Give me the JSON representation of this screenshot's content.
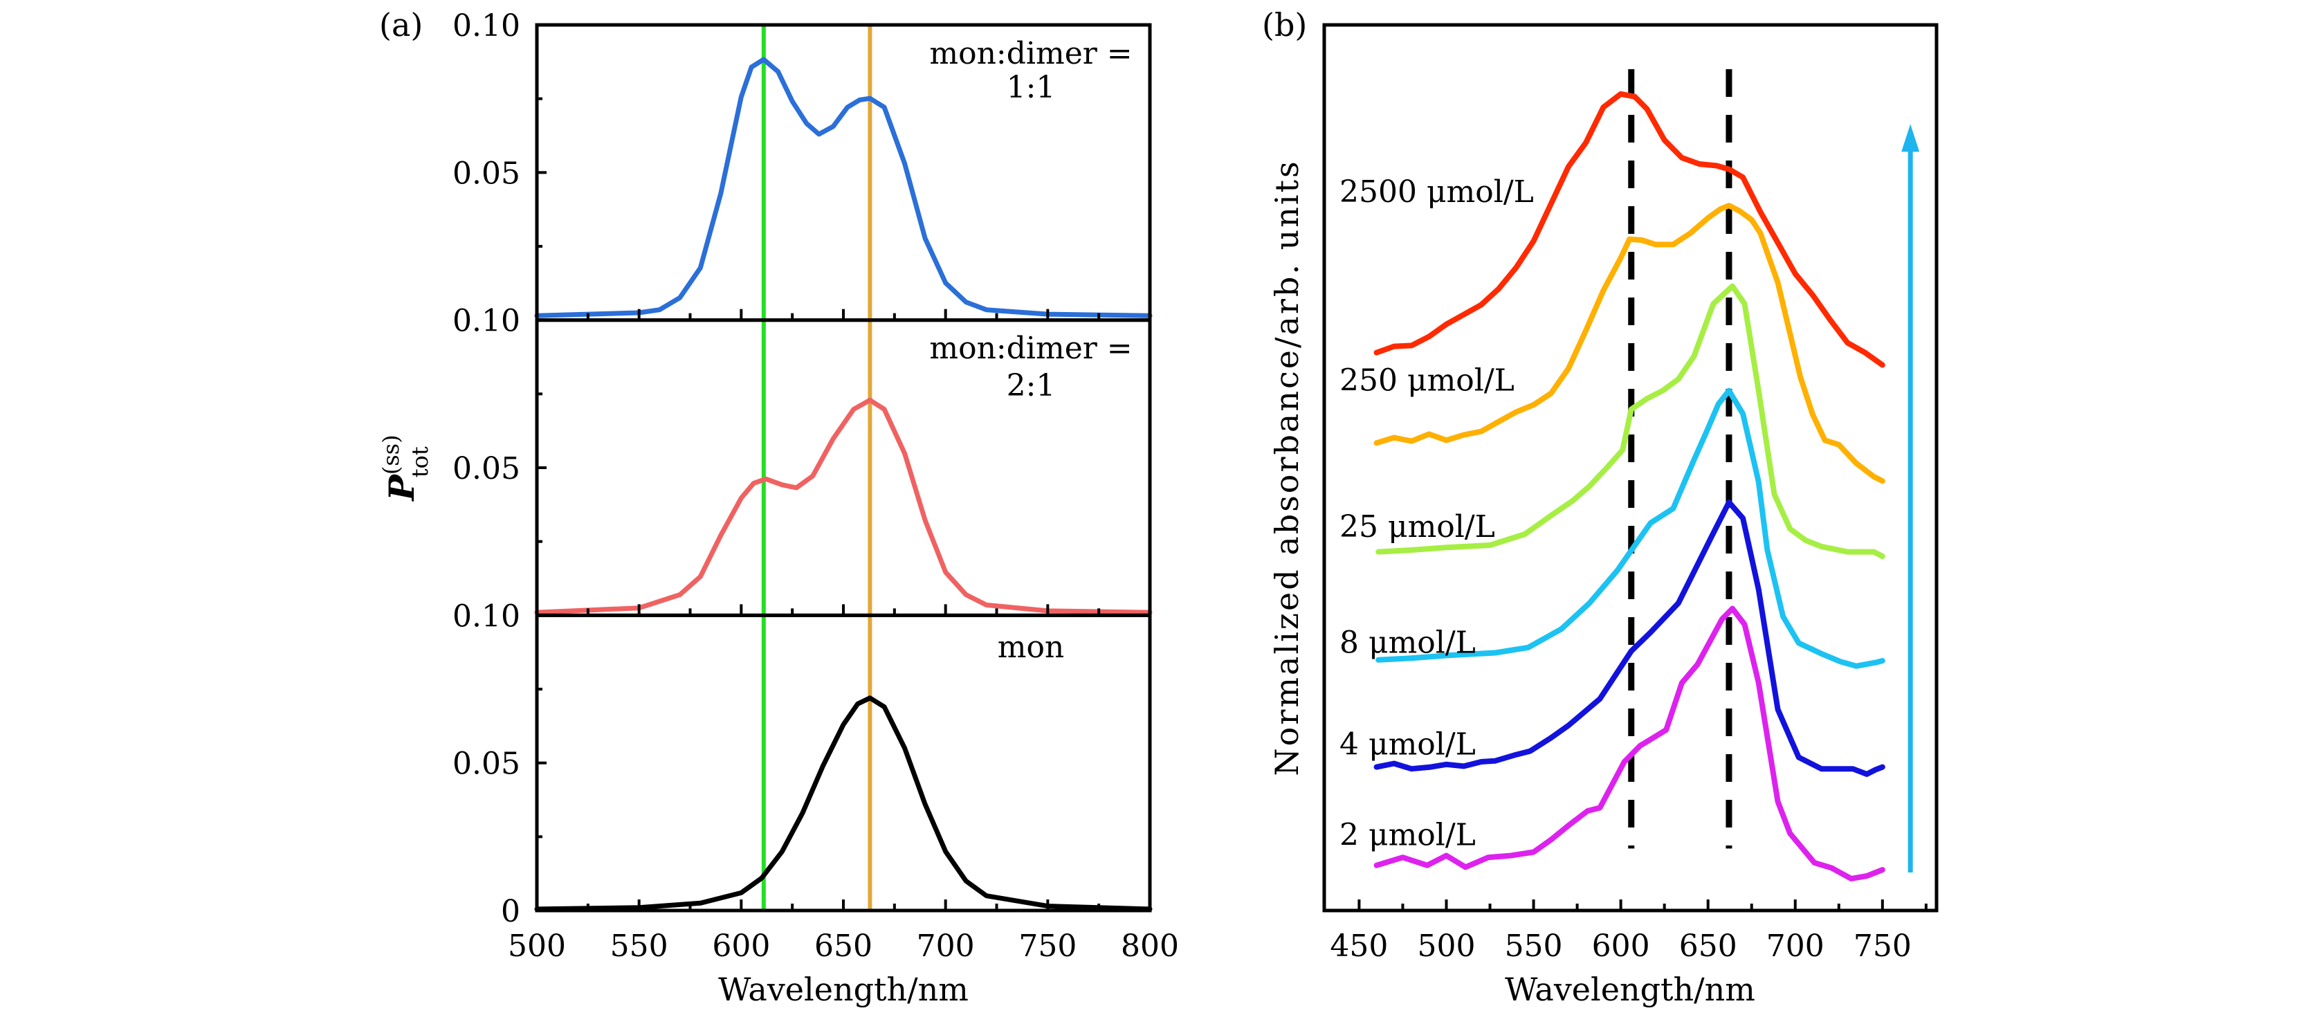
{
  "chart_data": [
    {
      "id": "a",
      "panel_label": "(a)",
      "type": "line",
      "layout": "three vertically stacked subplots sharing x-axis",
      "xlabel": "Wavelength/nm",
      "ylabel": "P_tot^(ss)",
      "ylabel_parts": {
        "main": "P",
        "sup": "(ss)",
        "sub": "tot"
      },
      "xlim": [
        500,
        800
      ],
      "x_ticks": [
        500,
        550,
        600,
        650,
        700,
        750,
        800
      ],
      "x_tick_labels": [
        "500",
        "550",
        "600",
        "650",
        "700",
        "750",
        "800"
      ],
      "x_minor_step": 25,
      "grid": false,
      "reference_lines": [
        {
          "name": "green-line",
          "x": 611,
          "color": "#22e022"
        },
        {
          "name": "orange-line",
          "x": 663,
          "color": "#e0a83a"
        }
      ],
      "subplots": [
        {
          "annotation": [
            "mon:dimer =",
            "1:1"
          ],
          "ylim": [
            0,
            0.1
          ],
          "y_ticks": [
            0.05,
            0.1
          ],
          "y_tick_labels": {
            "top": "0.10",
            "mid": "0.05",
            "bottom": "0.10"
          },
          "series": [
            {
              "name": "mon:dimer = 1:1",
              "color": "#2b6fd8",
              "x": [
                500,
                550,
                560,
                570,
                580,
                590,
                600,
                605,
                611,
                618,
                625,
                632,
                638,
                645,
                652,
                658,
                663,
                670,
                680,
                690,
                700,
                710,
                720,
                750,
                800
              ],
              "y": [
                0.0015,
                0.0025,
                0.0035,
                0.0076,
                0.0177,
                0.0429,
                0.0756,
                0.0857,
                0.0883,
                0.0842,
                0.0741,
                0.0666,
                0.063,
                0.0656,
                0.0721,
                0.0746,
                0.0751,
                0.0721,
                0.053,
                0.0277,
                0.0126,
                0.0061,
                0.0035,
                0.002,
                0.0015
              ]
            }
          ]
        },
        {
          "annotation": [
            "mon:dimer =",
            "2:1"
          ],
          "ylim": [
            0,
            0.1
          ],
          "y_ticks": [
            0.05,
            0.1
          ],
          "y_tick_labels": {
            "mid": "0.05",
            "bottom": "0.10"
          },
          "series": [
            {
              "name": "mon:dimer = 2:1",
              "color": "#f06262",
              "x": [
                500,
                550,
                570,
                580,
                590,
                600,
                606,
                612,
                620,
                627,
                635,
                645,
                655,
                663,
                670,
                680,
                690,
                700,
                710,
                720,
                750,
                800
              ],
              "y": [
                0.001,
                0.0025,
                0.007,
                0.0131,
                0.0271,
                0.0397,
                0.0447,
                0.0462,
                0.0442,
                0.0432,
                0.0472,
                0.0598,
                0.0698,
                0.0729,
                0.0698,
                0.0548,
                0.0322,
                0.0146,
                0.007,
                0.0035,
                0.0015,
                0.001
              ]
            }
          ]
        },
        {
          "annotation": [
            "mon"
          ],
          "ylim": [
            0,
            0.1
          ],
          "y_ticks": [
            0,
            0.05
          ],
          "y_tick_labels": {
            "mid": "0.05",
            "bottom": "0"
          },
          "series": [
            {
              "name": "mon",
              "color": "#000000",
              "x": [
                500,
                550,
                580,
                600,
                610,
                620,
                630,
                640,
                650,
                657,
                663,
                670,
                680,
                690,
                700,
                710,
                720,
                750,
                800
              ],
              "y": [
                0.0005,
                0.001,
                0.0025,
                0.006,
                0.011,
                0.02,
                0.033,
                0.049,
                0.063,
                0.07,
                0.072,
                0.069,
                0.055,
                0.036,
                0.02,
                0.01,
                0.005,
                0.0015,
                0.0005
              ]
            }
          ]
        }
      ]
    },
    {
      "id": "b",
      "panel_label": "(b)",
      "type": "line",
      "xlabel": "Wavelength/nm",
      "ylabel": "Normalized absorbance/arb. units",
      "xlim": [
        430,
        781
      ],
      "ylim": [
        0,
        1
      ],
      "y_ticks": [],
      "x_ticks": [
        450,
        500,
        550,
        600,
        650,
        700,
        750
      ],
      "x_tick_labels": [
        "450",
        "500",
        "550",
        "600",
        "650",
        "700",
        "750"
      ],
      "x_minor_step": 25,
      "grid": false,
      "dashed_lines": [
        {
          "name": "dashed-line-606",
          "x": 606,
          "y_range": [
            0.07,
            0.95
          ]
        },
        {
          "name": "dashed-line-662",
          "x": 662,
          "y_range": [
            0.07,
            0.95
          ]
        }
      ],
      "arrow": {
        "direction": "up",
        "color": "#1eb4ee",
        "x": 766,
        "y_from": 0.043,
        "y_to": 0.888,
        "meaning": "increasing concentration"
      },
      "series": [
        {
          "name": "2500 μmol/L",
          "color": "#ff2a00",
          "label_y": 0.8,
          "x": [
            460,
            470,
            480,
            490,
            500,
            510,
            520,
            530,
            540,
            550,
            560,
            570,
            580,
            590,
            600,
            608,
            615,
            625,
            635,
            645,
            655,
            662,
            670,
            680,
            690,
            700,
            710,
            720,
            730,
            740,
            750
          ],
          "y": [
            0.63,
            0.637,
            0.638,
            0.648,
            0.662,
            0.673,
            0.684,
            0.702,
            0.726,
            0.756,
            0.798,
            0.84,
            0.867,
            0.907,
            0.922,
            0.919,
            0.905,
            0.87,
            0.85,
            0.843,
            0.841,
            0.837,
            0.828,
            0.789,
            0.754,
            0.719,
            0.695,
            0.667,
            0.641,
            0.63,
            0.616
          ]
        },
        {
          "name": "250 μmol/L",
          "color": "#ffb000",
          "label_y": 0.587,
          "x": [
            460,
            470,
            480,
            490,
            500,
            510,
            520,
            530,
            540,
            550,
            560,
            570,
            580,
            590,
            600,
            605,
            612,
            620,
            630,
            640,
            650,
            657,
            662,
            668,
            675,
            680,
            690,
            703,
            710,
            717,
            725,
            735,
            745,
            750
          ],
          "y": [
            0.528,
            0.534,
            0.53,
            0.538,
            0.531,
            0.537,
            0.541,
            0.552,
            0.563,
            0.571,
            0.584,
            0.612,
            0.655,
            0.7,
            0.737,
            0.758,
            0.757,
            0.752,
            0.752,
            0.765,
            0.782,
            0.792,
            0.796,
            0.79,
            0.78,
            0.765,
            0.709,
            0.602,
            0.56,
            0.531,
            0.526,
            0.505,
            0.49,
            0.485
          ]
        },
        {
          "name": "25 μmol/L",
          "color": "#a6ee44",
          "label_y": 0.422,
          "x": [
            461,
            480,
            500,
            525,
            545,
            560,
            572,
            582,
            592,
            601,
            606,
            615,
            624,
            633,
            642,
            653,
            664,
            671,
            679,
            688,
            697,
            706,
            715,
            730,
            745,
            750
          ],
          "y": [
            0.405,
            0.407,
            0.41,
            0.4125,
            0.425,
            0.446,
            0.462,
            0.479,
            0.5,
            0.52,
            0.566,
            0.578,
            0.587,
            0.6,
            0.626,
            0.685,
            0.705,
            0.685,
            0.587,
            0.47,
            0.431,
            0.418,
            0.411,
            0.405,
            0.405,
            0.4
          ]
        },
        {
          "name": "8 μmol/L",
          "color": "#1cc2f2",
          "label_y": 0.291,
          "x": [
            461,
            480,
            500,
            528,
            547,
            566,
            582,
            598,
            617,
            630,
            642,
            649,
            656,
            662,
            670,
            679,
            684,
            693,
            702,
            715,
            726,
            735,
            746,
            750
          ],
          "y": [
            0.283,
            0.285,
            0.288,
            0.291,
            0.297,
            0.318,
            0.347,
            0.384,
            0.4375,
            0.454,
            0.509,
            0.54,
            0.572,
            0.587,
            0.561,
            0.484,
            0.407,
            0.332,
            0.302,
            0.29,
            0.281,
            0.276,
            0.28,
            0.282
          ]
        },
        {
          "name": "4 μmol/L",
          "color": "#1212dd",
          "label_y": 0.176,
          "x": [
            460,
            470,
            480,
            491,
            500,
            510,
            520,
            528,
            540,
            548,
            560,
            570,
            588,
            606,
            617,
            633,
            652,
            662,
            670,
            679,
            690,
            702,
            715,
            733,
            741,
            746,
            750
          ],
          "y": [
            0.162,
            0.166,
            0.16,
            0.162,
            0.165,
            0.163,
            0.168,
            0.169,
            0.176,
            0.18,
            0.195,
            0.209,
            0.239,
            0.293,
            0.314,
            0.347,
            0.422,
            0.461,
            0.443,
            0.3625,
            0.227,
            0.173,
            0.16,
            0.16,
            0.154,
            0.159,
            0.162
          ]
        },
        {
          "name": "2 μmol/L",
          "color": "#dd22ee",
          "label_y": 0.074,
          "x": [
            460,
            475,
            489,
            500,
            511,
            524,
            537,
            550,
            560,
            570,
            581,
            588,
            602,
            611,
            626,
            635,
            644,
            658,
            664,
            671,
            679,
            690,
            697,
            711,
            721,
            732,
            741,
            750
          ],
          "y": [
            0.051,
            0.06,
            0.051,
            0.062,
            0.049,
            0.06,
            0.062,
            0.066,
            0.08,
            0.096,
            0.1125,
            0.116,
            0.168,
            0.186,
            0.204,
            0.257,
            0.278,
            0.329,
            0.341,
            0.323,
            0.257,
            0.123,
            0.087,
            0.054,
            0.048,
            0.036,
            0.039,
            0.046
          ]
        }
      ]
    }
  ]
}
